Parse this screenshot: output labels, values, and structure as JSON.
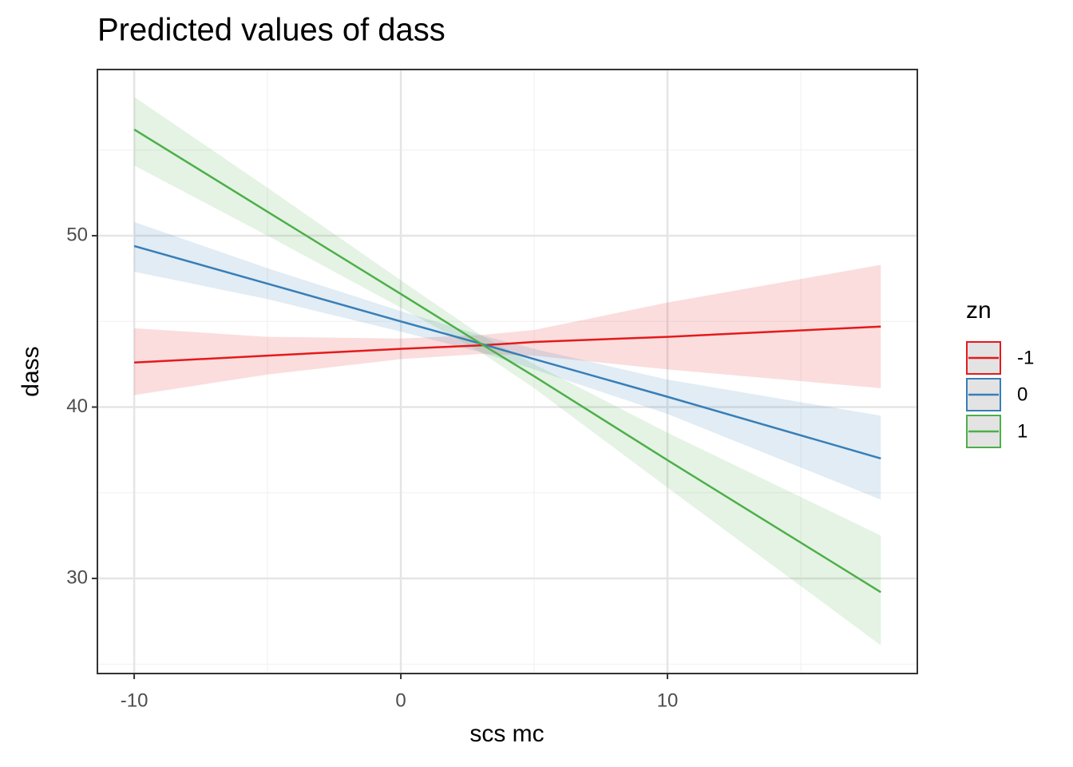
{
  "chart_data": {
    "type": "line",
    "title": "Predicted values of dass",
    "x_label": "scs mc",
    "y_label": "dass",
    "legend_title": "zn",
    "legend_position": "right",
    "x": [
      -10,
      -5,
      0,
      3,
      5,
      10,
      18
    ],
    "series": [
      {
        "name": "-1",
        "color": "#e41a1c",
        "values": [
          42.6,
          43.0,
          43.4,
          43.6,
          43.8,
          44.1,
          44.7
        ],
        "lower": [
          40.7,
          41.9,
          42.8,
          43.1,
          43.0,
          42.2,
          41.1
        ],
        "upper": [
          44.6,
          44.1,
          44.0,
          44.2,
          44.5,
          46.1,
          48.3
        ]
      },
      {
        "name": "0",
        "color": "#377eb8",
        "values": [
          49.4,
          47.2,
          45.0,
          43.7,
          42.8,
          40.6,
          37.0
        ],
        "lower": [
          47.9,
          46.3,
          44.4,
          43.2,
          42.2,
          39.6,
          34.6
        ],
        "upper": [
          50.8,
          48.1,
          45.6,
          44.2,
          43.4,
          41.6,
          39.5
        ]
      },
      {
        "name": "1",
        "color": "#4daf4a",
        "values": [
          56.2,
          51.4,
          46.6,
          43.7,
          41.8,
          36.9,
          29.2
        ],
        "lower": [
          54.1,
          50.0,
          45.8,
          43.2,
          41.1,
          35.3,
          26.1
        ],
        "upper": [
          58.1,
          52.8,
          47.4,
          44.2,
          42.5,
          38.5,
          32.5
        ]
      }
    ],
    "xlim": [
      -11.38,
      19.37
    ],
    "xticks": [
      -10,
      0,
      10
    ],
    "ylim": [
      24.45,
      59.7
    ],
    "yticks": [
      30,
      40,
      50
    ],
    "grid": true
  }
}
